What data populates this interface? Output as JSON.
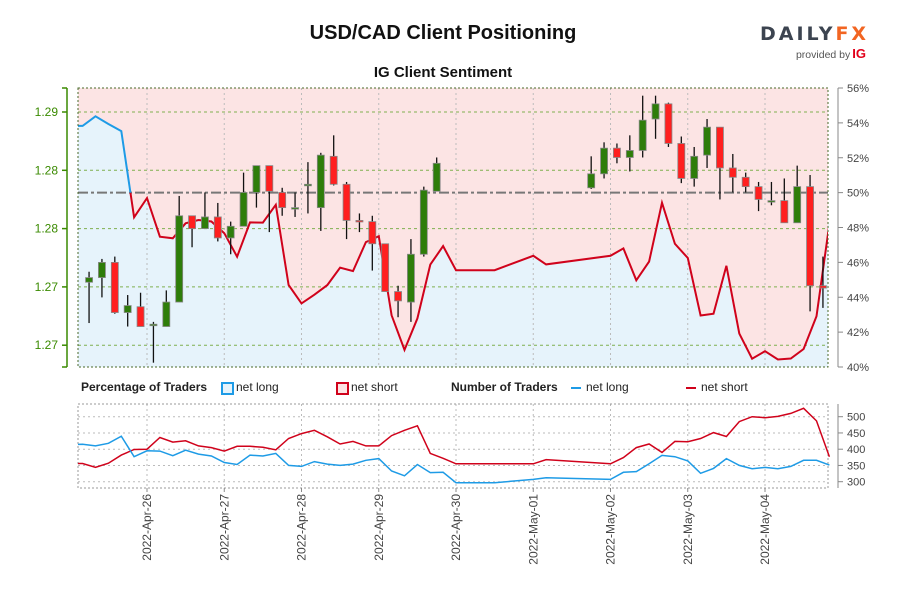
{
  "header": {
    "title": "USD/CAD Client Positioning",
    "subtitle": "IG Client Sentiment",
    "logo": {
      "brand_left": "DAILY",
      "brand_right": "FX",
      "provided_by": "provided by",
      "partner": "IG"
    }
  },
  "legend": {
    "percentage_title": "Percentage of Traders",
    "pct_long": "net long",
    "pct_short": "net short",
    "number_title": "Number of Traders",
    "num_long": "net long",
    "num_short": "net short"
  },
  "colors": {
    "long": "#1e9be6",
    "short": "#d0021b",
    "long_fill": "#e6f3fb",
    "short_fill": "#fce4e4",
    "bull_candle": "#2e7d0a",
    "bear_candle": "#ff1f1f",
    "price_axis": "#3a8a00"
  },
  "chart_data": [
    {
      "type": "candlestick+line",
      "title": "IG Client Sentiment",
      "price_axis": {
        "side": "left",
        "ticks": [
          {
            "v": 1.29,
            "label": "1.29"
          },
          {
            "v": 1.285,
            "label": "1.28"
          },
          {
            "v": 1.28,
            "label": "1.28"
          },
          {
            "v": 1.275,
            "label": "1.27"
          },
          {
            "v": 1.27,
            "label": "1.27"
          }
        ]
      },
      "pct_axis": {
        "side": "right",
        "range": [
          40,
          56
        ],
        "ticks": [
          "40%",
          "42%",
          "44%",
          "46%",
          "48%",
          "50%",
          "52%",
          "54%",
          "56%"
        ],
        "reference_line": 50
      },
      "candle_interval_hours": 4,
      "candles": [
        [
          "2022-04-25 04:00",
          1.2754,
          1.2763,
          1.2719,
          1.2758
        ],
        [
          "2022-04-25 08:00",
          1.2758,
          1.2774,
          1.2741,
          1.2771
        ],
        [
          "2022-04-25 12:00",
          1.2771,
          1.2776,
          1.2727,
          1.2728
        ],
        [
          "2022-04-25 16:00",
          1.2728,
          1.2743,
          1.2716,
          1.2734
        ],
        [
          "2022-04-25 20:00",
          1.2733,
          1.2745,
          1.2716,
          1.2716
        ],
        [
          "2022-04-26 00:00",
          1.2717,
          1.272,
          1.2685,
          1.2718
        ],
        [
          "2022-04-26 04:00",
          1.2716,
          1.2747,
          1.2716,
          1.2737
        ],
        [
          "2022-04-26 08:00",
          1.2737,
          1.2828,
          1.2737,
          1.2811
        ],
        [
          "2022-04-26 12:00",
          1.2811,
          1.2811,
          1.2784,
          1.28
        ],
        [
          "2022-04-26 16:00",
          1.28,
          1.2831,
          1.28,
          1.281
        ],
        [
          "2022-04-26 20:00",
          1.281,
          1.2822,
          1.2789,
          1.2792
        ],
        [
          "2022-04-27 00:00",
          1.2792,
          1.2806,
          1.2778,
          1.2802
        ],
        [
          "2022-04-27 04:00",
          1.2802,
          1.2848,
          1.2802,
          1.2831
        ],
        [
          "2022-04-27 08:00",
          1.2831,
          1.2854,
          1.2818,
          1.2854
        ],
        [
          "2022-04-27 12:00",
          1.2854,
          1.2854,
          1.2797,
          1.2832
        ],
        [
          "2022-04-27 16:00",
          1.2831,
          1.2835,
          1.2811,
          1.2818
        ],
        [
          "2022-04-27 20:00",
          1.2817,
          1.2831,
          1.281,
          1.2818
        ],
        [
          "2022-04-28 00:00",
          1.2838,
          1.2857,
          1.2813,
          1.2838
        ],
        [
          "2022-04-28 04:00",
          1.2818,
          1.2865,
          1.2798,
          1.2863
        ],
        [
          "2022-04-28 08:00",
          1.2862,
          1.288,
          1.2837,
          1.2838
        ],
        [
          "2022-04-28 12:00",
          1.2838,
          1.284,
          1.2791,
          1.2807
        ],
        [
          "2022-04-28 16:00",
          1.2807,
          1.2813,
          1.2797,
          1.2806
        ],
        [
          "2022-04-28 20:00",
          1.2806,
          1.2811,
          1.2764,
          1.2787
        ],
        [
          "2022-04-29 00:00",
          1.2787,
          1.2787,
          1.2746,
          1.2746
        ],
        [
          "2022-04-29 04:00",
          1.2746,
          1.2751,
          1.2724,
          1.2738
        ],
        [
          "2022-04-29 08:00",
          1.2737,
          1.2791,
          1.272,
          1.2778
        ],
        [
          "2022-04-29 12:00",
          1.2778,
          1.2836,
          1.2776,
          1.2833
        ],
        [
          "2022-04-29 16:00",
          1.2832,
          1.2861,
          1.2832,
          1.2856
        ],
        [
          "2022-05-01 16:00",
          1.2835,
          1.2862,
          1.2834,
          1.2847
        ],
        [
          "2022-05-01 20:00",
          1.2847,
          1.2874,
          1.2843,
          1.2869
        ],
        [
          "2022-05-02 00:00",
          1.2869,
          1.2873,
          1.2856,
          1.2861
        ],
        [
          "2022-05-02 04:00",
          1.2861,
          1.288,
          1.2849,
          1.2867
        ],
        [
          "2022-05-02 08:00",
          1.2867,
          1.2914,
          1.2861,
          1.2893
        ],
        [
          "2022-05-02 12:00",
          1.2894,
          1.2914,
          1.2877,
          1.2907
        ],
        [
          "2022-05-02 16:00",
          1.2907,
          1.2908,
          1.287,
          1.2873
        ],
        [
          "2022-05-02 20:00",
          1.2873,
          1.2879,
          1.2839,
          1.2843
        ],
        [
          "2022-05-03 00:00",
          1.2843,
          1.287,
          1.2836,
          1.2862
        ],
        [
          "2022-05-03 04:00",
          1.2863,
          1.2894,
          1.2852,
          1.2887
        ],
        [
          "2022-05-03 08:00",
          1.2887,
          1.2887,
          1.2825,
          1.2852
        ],
        [
          "2022-05-03 12:00",
          1.2852,
          1.2864,
          1.2831,
          1.2844
        ],
        [
          "2022-05-03 16:00",
          1.2844,
          1.2848,
          1.2831,
          1.2836
        ],
        [
          "2022-05-03 20:00",
          1.2836,
          1.284,
          1.2815,
          1.2825
        ],
        [
          "2022-05-04 00:00",
          1.2824,
          1.284,
          1.282,
          1.2824
        ],
        [
          "2022-05-04 04:00",
          1.2824,
          1.2843,
          1.2805,
          1.2805
        ],
        [
          "2022-05-04 08:00",
          1.2805,
          1.2854,
          1.2805,
          1.2836
        ],
        [
          "2022-05-04 12:00",
          1.2836,
          1.2846,
          1.2729,
          1.2751
        ],
        [
          "2022-05-04 16:00",
          1.2751,
          1.2776,
          1.2732,
          1.2749
        ]
      ]
    },
    {
      "type": "line",
      "y_axis": {
        "side": "right",
        "range": [
          300,
          500
        ],
        "ticks": [
          "300",
          "350",
          "400",
          "450",
          "500"
        ]
      },
      "x_ticks": [
        "2022-Apr-26",
        "2022-Apr-27",
        "2022-Apr-28",
        "2022-Apr-29",
        "2022-Apr-30",
        "2022-May-01",
        "2022-May-02",
        "2022-May-03",
        "2022-May-04"
      ],
      "traders": [
        [
          "2022-04-25 04:00",
          415,
          356
        ],
        [
          "2022-04-25 08:00",
          410,
          344
        ],
        [
          "2022-04-25 12:00",
          418,
          357
        ],
        [
          "2022-04-25 16:00",
          440,
          382
        ],
        [
          "2022-04-25 20:00",
          377,
          399
        ],
        [
          "2022-04-26 00:00",
          395,
          400
        ],
        [
          "2022-04-26 04:00",
          394,
          436
        ],
        [
          "2022-04-26 08:00",
          380,
          422
        ],
        [
          "2022-04-26 12:00",
          397,
          426
        ],
        [
          "2022-04-26 16:00",
          385,
          410
        ],
        [
          "2022-04-26 20:00",
          379,
          405
        ],
        [
          "2022-04-27 00:00",
          359,
          394
        ],
        [
          "2022-04-27 04:00",
          353,
          409
        ],
        [
          "2022-04-27 08:00",
          382,
          409
        ],
        [
          "2022-04-27 12:00",
          379,
          406
        ],
        [
          "2022-04-27 16:00",
          387,
          398
        ],
        [
          "2022-04-27 20:00",
          350,
          433
        ],
        [
          "2022-04-28 00:00",
          347,
          448
        ],
        [
          "2022-04-28 04:00",
          362,
          458
        ],
        [
          "2022-04-28 08:00",
          354,
          438
        ],
        [
          "2022-04-28 12:00",
          350,
          416
        ],
        [
          "2022-04-28 16:00",
          354,
          424
        ],
        [
          "2022-04-28 20:00",
          366,
          410
        ],
        [
          "2022-04-29 00:00",
          371,
          410
        ],
        [
          "2022-04-29 04:00",
          333,
          442
        ],
        [
          "2022-04-29 08:00",
          318,
          458
        ],
        [
          "2022-04-29 12:00",
          353,
          472
        ],
        [
          "2022-04-29 16:00",
          328,
          387
        ],
        [
          "2022-04-29 20:00",
          329,
          372
        ],
        [
          "2022-04-30 00:00",
          297,
          355
        ],
        [
          "2022-04-30 12:00",
          297,
          355
        ],
        [
          "2022-05-01 00:00",
          307,
          355
        ],
        [
          "2022-05-01 04:00",
          312,
          368
        ],
        [
          "2022-05-02 00:00",
          307,
          355
        ],
        [
          "2022-05-02 04:00",
          329,
          374
        ],
        [
          "2022-05-02 08:00",
          331,
          405
        ],
        [
          "2022-05-02 12:00",
          355,
          416
        ],
        [
          "2022-05-02 16:00",
          381,
          390
        ],
        [
          "2022-05-02 20:00",
          377,
          424
        ],
        [
          "2022-05-03 00:00",
          364,
          423
        ],
        [
          "2022-05-03 04:00",
          326,
          433
        ],
        [
          "2022-05-03 08:00",
          341,
          451
        ],
        [
          "2022-05-03 12:00",
          371,
          439
        ],
        [
          "2022-05-03 16:00",
          350,
          485
        ],
        [
          "2022-05-03 20:00",
          340,
          500
        ],
        [
          "2022-05-04 00:00",
          344,
          497
        ],
        [
          "2022-05-04 04:00",
          340,
          501
        ],
        [
          "2022-05-04 08:00",
          347,
          510
        ],
        [
          "2022-05-04 12:00",
          366,
          526
        ],
        [
          "2022-05-04 16:00",
          366,
          487
        ],
        [
          "2022-05-04 20:00",
          351,
          377
        ]
      ],
      "traders_columns": [
        "time",
        "net_long",
        "net_short"
      ]
    }
  ]
}
